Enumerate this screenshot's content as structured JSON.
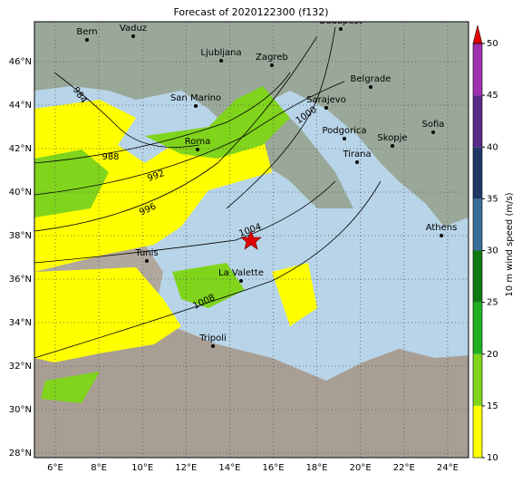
{
  "title": "Forecast of 2020122300 (f132)",
  "x_labels": [
    "6°E",
    "8°E",
    "10°E",
    "12°E",
    "14°E",
    "16°E",
    "18°E",
    "20°E",
    "22°E",
    "24°E"
  ],
  "y_labels": [
    "28°N",
    "30°N",
    "32°N",
    "34°N",
    "36°N",
    "38°N",
    "40°N",
    "42°N",
    "44°N",
    "46°N"
  ],
  "cities": [
    "Bern",
    "Vaduz",
    "Budapest",
    "Ljubljana",
    "Zagreb",
    "San Marino",
    "Belgrade",
    "Sarajevo",
    "Roma",
    "Podgorica",
    "Sofia",
    "Skopje",
    "Tirana",
    "Tunis",
    "Athens",
    "La Valette",
    "Tripoli"
  ],
  "isobars": [
    "984",
    "988",
    "992",
    "996",
    "1000",
    "1004",
    "1008"
  ],
  "colorbar": {
    "label": "10 m wind speed (m/s)",
    "ticks": [
      10,
      15,
      20,
      25,
      30,
      35,
      40,
      45,
      50
    ],
    "colors": [
      "#ffff00",
      "#80d41c",
      "#20b020",
      "#127a12",
      "#3a6e9a",
      "#1f3866",
      "#5a2a8a",
      "#a030b0"
    ],
    "over_color": "#e00000"
  }
}
